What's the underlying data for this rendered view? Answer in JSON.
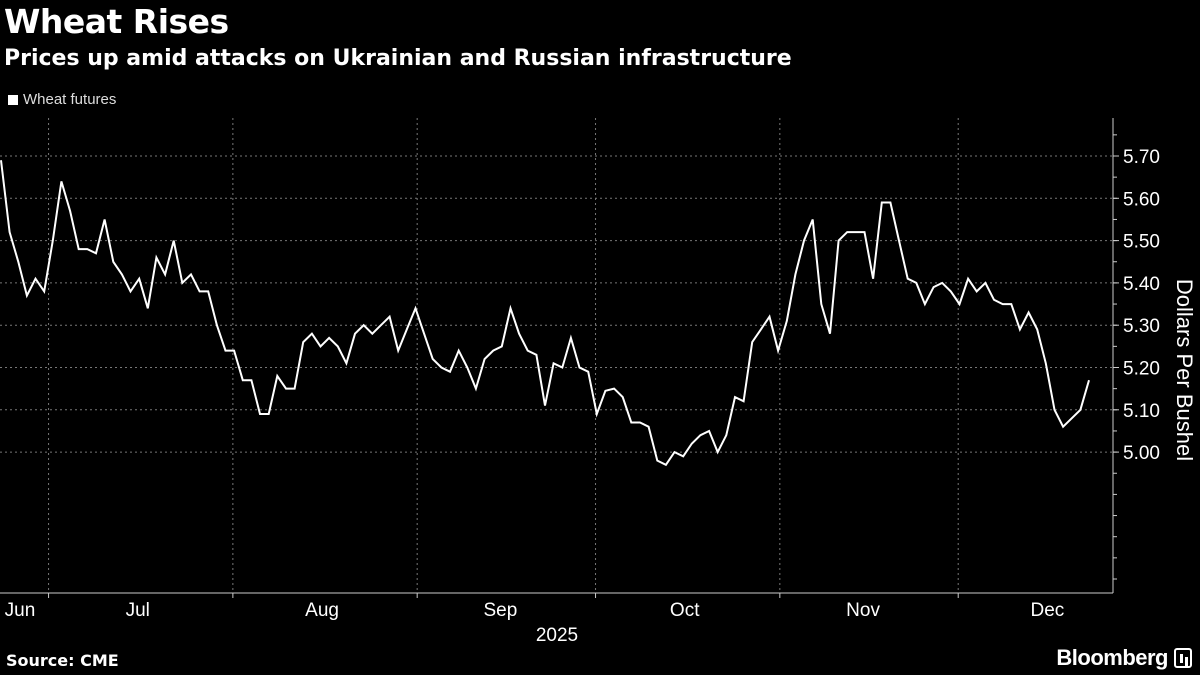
{
  "header": {
    "title": "Wheat Rises",
    "subtitle": "Prices up amid attacks on Ukrainian and Russian infrastructure"
  },
  "footer": {
    "source": "Source: CME",
    "brand": "Bloomberg"
  },
  "chart_data": {
    "type": "line",
    "title": "Wheat Rises",
    "subtitle": "Prices up amid attacks on Ukrainian and Russian infrastructure",
    "ylabel": "Dollars Per Bushel",
    "xlabel": "2025",
    "ylim": [
      4.67,
      5.79
    ],
    "y_ticks": [
      5.0,
      5.1,
      5.2,
      5.3,
      5.4,
      5.5,
      5.6,
      5.7
    ],
    "y_tick_labels": [
      "5.00",
      "5.10",
      "5.20",
      "5.30",
      "5.40",
      "5.50",
      "5.60",
      "5.70"
    ],
    "x_start": "2025-06-23",
    "x_end": "2025-12-23",
    "x_axis_end": "2026-01-01",
    "month_boundaries": [
      "2025-07-01",
      "2025-08-01",
      "2025-09-01",
      "2025-10-01",
      "2025-11-01",
      "2025-12-01"
    ],
    "month_labels": [
      {
        "label": "Jun",
        "date": "2025-06-19"
      },
      {
        "label": "Jul",
        "date": "2025-07-16"
      },
      {
        "label": "Aug",
        "date": "2025-08-16"
      },
      {
        "label": "Sep",
        "date": "2025-09-15"
      },
      {
        "label": "Oct",
        "date": "2025-10-16"
      },
      {
        "label": "Nov",
        "date": "2025-11-15"
      },
      {
        "label": "Dec",
        "date": "2025-12-16"
      }
    ],
    "grid": true,
    "legend": {
      "position": "top-left",
      "entries": [
        "Wheat futures"
      ]
    },
    "series": [
      {
        "name": "Wheat futures",
        "color": "#ffffff",
        "values": [
          5.69,
          5.52,
          5.45,
          5.37,
          5.41,
          5.38,
          5.5,
          5.64,
          5.57,
          5.48,
          5.48,
          5.47,
          5.55,
          5.45,
          5.42,
          5.38,
          5.41,
          5.34,
          5.46,
          5.42,
          5.5,
          5.4,
          5.42,
          5.38,
          5.38,
          5.3,
          5.24,
          5.24,
          5.17,
          5.17,
          5.09,
          5.09,
          5.18,
          5.15,
          5.15,
          5.26,
          5.28,
          5.25,
          5.27,
          5.25,
          5.21,
          5.28,
          5.3,
          5.28,
          5.3,
          5.32,
          5.24,
          5.29,
          5.34,
          5.28,
          5.22,
          5.2,
          5.19,
          5.24,
          5.2,
          5.15,
          5.22,
          5.24,
          5.25,
          5.34,
          5.28,
          5.24,
          5.23,
          5.11,
          5.21,
          5.2,
          5.27,
          5.2,
          5.19,
          5.09,
          5.145,
          5.15,
          5.13,
          5.07,
          5.07,
          5.06,
          4.98,
          4.97,
          5.0,
          4.99,
          5.02,
          5.04,
          5.05,
          5.0,
          5.04,
          5.13,
          5.12,
          5.26,
          5.29,
          5.32,
          5.24,
          5.31,
          5.42,
          5.5,
          5.55,
          5.35,
          5.28,
          5.5,
          5.52,
          5.52,
          5.52,
          5.41,
          5.59,
          5.59,
          5.5,
          5.41,
          5.4,
          5.35,
          5.39,
          5.4,
          5.38,
          5.35,
          5.41,
          5.38,
          5.4,
          5.36,
          5.35,
          5.35,
          5.29,
          5.33,
          5.29,
          5.21,
          5.1,
          5.06,
          5.08,
          5.1,
          5.17
        ]
      }
    ]
  }
}
